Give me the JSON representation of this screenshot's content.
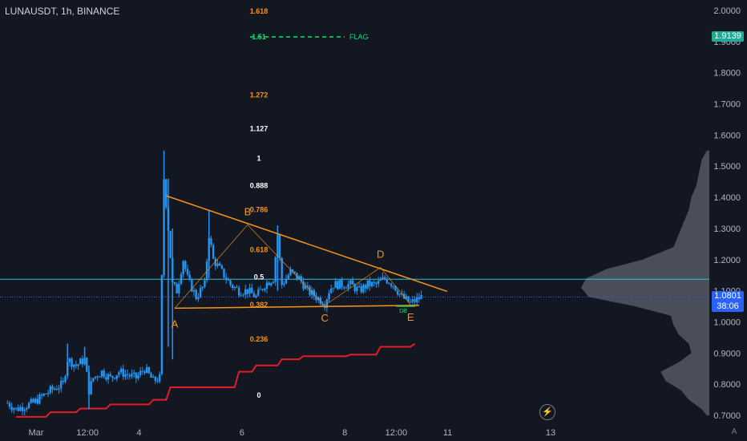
{
  "header": {
    "title": "LUNAUSDT, 1h, BINANCE"
  },
  "price_tags": {
    "flag": {
      "value": "1.9139",
      "color": "#22ab94"
    },
    "current": {
      "value": "1.0801",
      "countdown": "38:06",
      "color": "#2962ff"
    }
  },
  "buttons": {
    "bolt_icon": "bolt-icon",
    "auto_scale": "A"
  },
  "colors": {
    "background": "#131722",
    "bull": "#26a69a",
    "bear": "#2962ff",
    "candle": "#2196f3",
    "support_line": "#e51c24",
    "triangle": "#f7931a",
    "fib_orange": "#f7931a",
    "fib_white": "#ffffff",
    "flag": "#00e676",
    "volume_profile": "#787b86",
    "hline": "#26c6da"
  },
  "chart_data": {
    "type": "candlestick",
    "symbol": "LUNAUSDT",
    "timeframe": "1h",
    "exchange": "BINANCE",
    "ylim": [
      0.68,
      2.02
    ],
    "y_ticks": [
      "0.7000",
      "0.8000",
      "0.9000",
      "1.0000",
      "1.1000",
      "1.2000",
      "1.3000",
      "1.4000",
      "1.5000",
      "1.6000",
      "1.7000",
      "1.8000",
      "1.9000",
      "2.0000"
    ],
    "x_ticks": [
      {
        "label": "Mar",
        "t": 0
      },
      {
        "label": "12:00",
        "t": 12
      },
      {
        "label": "4",
        "t": 24
      },
      {
        "label": "6",
        "t": 48
      },
      {
        "label": "8",
        "t": 72
      },
      {
        "label": "12:00",
        "t": 84
      },
      {
        "label": "11",
        "t": 96
      },
      {
        "label": "13",
        "t": 120
      }
    ],
    "price_path": [
      [
        -2,
        0.74
      ],
      [
        0,
        0.72
      ],
      [
        4,
        0.74
      ],
      [
        8,
        0.78
      ],
      [
        11,
        0.8
      ],
      [
        12,
        0.88
      ],
      [
        14,
        0.86
      ],
      [
        16,
        0.88
      ],
      [
        17,
        0.78
      ],
      [
        18,
        0.82
      ],
      [
        20,
        0.84
      ],
      [
        22,
        0.82
      ],
      [
        24,
        0.84
      ],
      [
        26,
        0.83
      ],
      [
        28,
        0.82
      ],
      [
        30,
        0.85
      ],
      [
        32,
        0.81
      ],
      [
        33.5,
        0.82
      ],
      [
        34.5,
        1.46
      ],
      [
        35.5,
        1.3
      ],
      [
        36.5,
        1.12
      ],
      [
        37.5,
        1.1
      ],
      [
        39,
        1.2
      ],
      [
        40,
        1.14
      ],
      [
        42,
        1.08
      ],
      [
        44,
        1.12
      ],
      [
        45,
        1.28
      ],
      [
        46,
        1.2
      ],
      [
        48,
        1.16
      ],
      [
        50,
        1.12
      ],
      [
        52,
        1.1
      ],
      [
        54,
        1.1
      ],
      [
        56,
        1.08
      ],
      [
        58,
        1.12
      ],
      [
        60,
        1.14
      ],
      [
        61,
        1.28
      ],
      [
        62,
        1.12
      ],
      [
        64,
        1.16
      ],
      [
        66,
        1.14
      ],
      [
        68,
        1.1
      ],
      [
        70,
        1.08
      ],
      [
        72,
        1.06
      ],
      [
        73,
        1.1
      ],
      [
        74,
        1.12
      ],
      [
        76,
        1.12
      ],
      [
        78,
        1.12
      ],
      [
        80,
        1.1
      ],
      [
        82,
        1.12
      ],
      [
        84,
        1.12
      ],
      [
        86,
        1.14
      ],
      [
        88,
        1.12
      ],
      [
        90,
        1.08
      ],
      [
        92,
        1.06
      ],
      [
        94.5,
        1.08
      ]
    ],
    "wicks": [
      {
        "t": 12,
        "high": 0.93,
        "low": 0.83
      },
      {
        "t": 16,
        "high": 0.92,
        "low": 0.86
      },
      {
        "t": 17,
        "high": 0.86,
        "low": 0.72
      },
      {
        "t": 34.5,
        "high": 1.55,
        "low": 1.2
      },
      {
        "t": 35.5,
        "high": 1.46,
        "low": 0.92
      },
      {
        "t": 36.5,
        "high": 1.3,
        "low": 0.88
      },
      {
        "t": 45,
        "high": 1.36,
        "low": 1.14
      },
      {
        "t": 61,
        "high": 1.31,
        "low": 1.1
      }
    ],
    "fib_levels": [
      {
        "label": "1.618",
        "price": 1.998,
        "color": "orange"
      },
      {
        "label": "1.51",
        "price": 1.915,
        "color": "green"
      },
      {
        "label": "1.272",
        "price": 1.728,
        "color": "orange"
      },
      {
        "label": "1.127",
        "price": 1.62,
        "color": "white"
      },
      {
        "label": "1",
        "price": 1.525,
        "color": "white"
      },
      {
        "label": "0.888",
        "price": 1.438,
        "color": "white"
      },
      {
        "label": "0.786",
        "price": 1.36,
        "color": "orange"
      },
      {
        "label": "0.618",
        "price": 1.232,
        "color": "orange"
      },
      {
        "label": "0.5",
        "price": 1.144,
        "color": "white"
      },
      {
        "label": "0.382",
        "price": 1.055,
        "color": "orange"
      },
      {
        "label": "0.236",
        "price": 0.944,
        "color": "orange"
      },
      {
        "label": "0",
        "price": 0.764,
        "color": "white"
      }
    ],
    "flag_label": "FLAG",
    "triangle": {
      "upper": [
        [
          35,
          1.405
        ],
        [
          94,
          1.085
        ]
      ],
      "lower": [
        [
          37,
          1.044
        ],
        [
          94,
          1.053
        ]
      ],
      "points": [
        {
          "label": "A",
          "t": 37,
          "price": 1.044
        },
        {
          "label": "B",
          "t": 54,
          "price": 1.312
        },
        {
          "label": "C",
          "t": 72,
          "price": 1.053
        },
        {
          "label": "D",
          "t": 85,
          "price": 1.175
        },
        {
          "label": "E",
          "t": 92,
          "price": 1.055
        }
      ],
      "label_sub": "DB"
    },
    "support_steps": [
      [
        0,
        0.695
      ],
      [
        7,
        0.695
      ],
      [
        8,
        0.71
      ],
      [
        14,
        0.71
      ],
      [
        15,
        0.722
      ],
      [
        21,
        0.722
      ],
      [
        22,
        0.735
      ],
      [
        31,
        0.735
      ],
      [
        32,
        0.75
      ],
      [
        35,
        0.75
      ],
      [
        36,
        0.79
      ],
      [
        51,
        0.79
      ],
      [
        52,
        0.84
      ],
      [
        55,
        0.84
      ],
      [
        56,
        0.86
      ],
      [
        61,
        0.86
      ],
      [
        62,
        0.88
      ],
      [
        66,
        0.88
      ],
      [
        67,
        0.89
      ],
      [
        77,
        0.89
      ],
      [
        78,
        0.895
      ],
      [
        84,
        0.895
      ],
      [
        85,
        0.92
      ],
      [
        92,
        0.92
      ],
      [
        93,
        0.93
      ]
    ],
    "hline_price": 1.137,
    "current_price_line": 1.0801,
    "volume_profile": [
      [
        1.55,
        0.02
      ],
      [
        1.52,
        0.06
      ],
      [
        1.48,
        0.08
      ],
      [
        1.44,
        0.1
      ],
      [
        1.4,
        0.14
      ],
      [
        1.36,
        0.16
      ],
      [
        1.32,
        0.2
      ],
      [
        1.28,
        0.24
      ],
      [
        1.24,
        0.28
      ],
      [
        1.2,
        0.52
      ],
      [
        1.17,
        0.8
      ],
      [
        1.14,
        0.96
      ],
      [
        1.11,
        1.0
      ],
      [
        1.08,
        0.94
      ],
      [
        1.05,
        0.58
      ],
      [
        1.02,
        0.3
      ],
      [
        0.99,
        0.28
      ],
      [
        0.96,
        0.24
      ],
      [
        0.93,
        0.16
      ],
      [
        0.9,
        0.14
      ],
      [
        0.87,
        0.24
      ],
      [
        0.84,
        0.38
      ],
      [
        0.81,
        0.34
      ],
      [
        0.78,
        0.22
      ],
      [
        0.75,
        0.16
      ],
      [
        0.72,
        0.06
      ],
      [
        0.7,
        0.02
      ]
    ]
  }
}
